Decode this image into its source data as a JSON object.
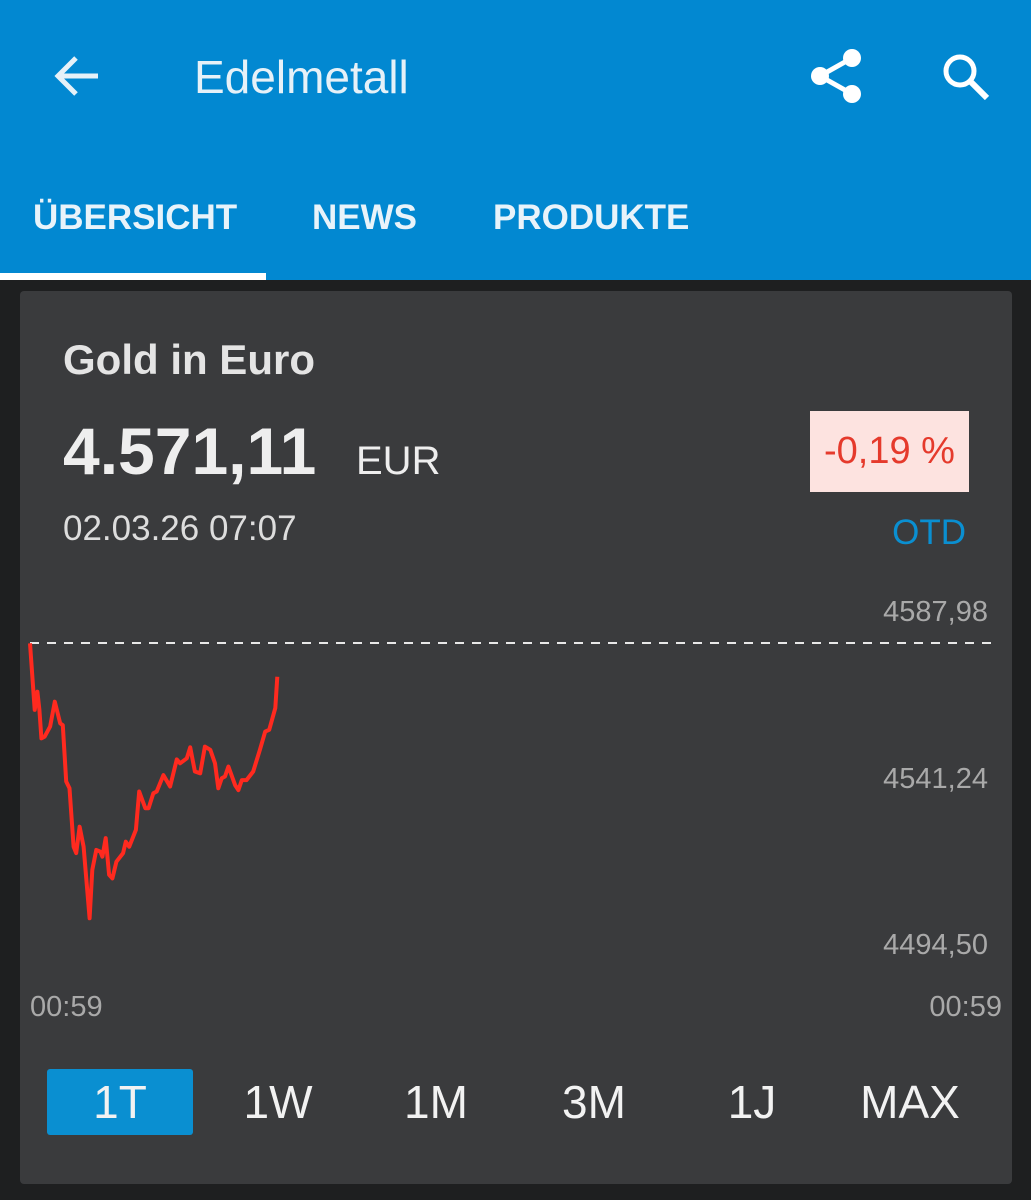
{
  "appbar": {
    "title": "Edelmetall",
    "icons": [
      "arrow-back-icon",
      "share-icon",
      "search-icon"
    ]
  },
  "tabs": [
    {
      "label": "ÜBERSICHT",
      "active": true
    },
    {
      "label": "NEWS"
    },
    {
      "label": "PRODUKTE"
    }
  ],
  "quote": {
    "name": "Gold in Euro",
    "price": "4.571,11",
    "currency": "EUR",
    "timestamp": "02.03.26 07:07",
    "change": "-0,19 %",
    "change_period": "OTD",
    "colors": {
      "accent": "#0288d1",
      "negative": "#e53a2c",
      "negative_bg": "#fde3e0",
      "line": "#ff2a1f"
    }
  },
  "ranges": [
    {
      "label": "1T",
      "active": true
    },
    {
      "label": "1W"
    },
    {
      "label": "1M"
    },
    {
      "label": "3M"
    },
    {
      "label": "1J"
    },
    {
      "label": "MAX"
    }
  ],
  "chart_data": {
    "type": "line",
    "y_ticks": [
      "4587,98",
      "4541,24",
      "4494,50"
    ],
    "y_tick_values": [
      4587.98,
      4541.24,
      4494.5
    ],
    "x_ticks": [
      "00:59",
      "00:59"
    ],
    "reference_line": 4587.98,
    "grid": false,
    "series": [
      {
        "x": [
          "00:59",
          "01:06",
          "01:10",
          "01:13",
          "01:16",
          "01:21",
          "01:29",
          "01:36",
          "01:44",
          "01:48",
          "01:53",
          "01:58",
          "02:04",
          "02:08",
          "02:13",
          "02:19",
          "02:28",
          "02:32",
          "02:38",
          "02:44",
          "02:47",
          "02:52",
          "02:57",
          "03:02",
          "03:08",
          "03:18",
          "03:22",
          "03:27",
          "03:37",
          "03:42",
          "03:51",
          "03:56",
          "04:03",
          "04:08",
          "04:18",
          "04:28",
          "04:38",
          "04:43",
          "04:53",
          "04:58",
          "05:05",
          "05:13",
          "05:20",
          "05:28",
          "05:35",
          "05:40",
          "05:45",
          "05:50",
          "05:55",
          "06:05",
          "06:10",
          "06:15",
          "06:22",
          "06:32",
          "06:42",
          "06:50",
          "06:56",
          "07:05",
          "07:08"
        ],
        "values": [
          4587.9,
          4569.2,
          4574.3,
          4569.2,
          4561.2,
          4561.7,
          4564.5,
          4571.5,
          4565.4,
          4564.9,
          4549.1,
          4547.2,
          4530.8,
          4529.0,
          4536.4,
          4530.8,
          4510.7,
          4524.3,
          4529.9,
          4529.4,
          4528.0,
          4533.2,
          4522.9,
          4521.9,
          4526.6,
          4529.0,
          4532.2,
          4530.8,
          4535.5,
          4546.3,
          4541.6,
          4541.6,
          4545.8,
          4546.3,
          4550.9,
          4547.7,
          4555.3,
          4554.2,
          4555.6,
          4558.7,
          4551.9,
          4551.4,
          4558.9,
          4558.0,
          4554.2,
          4547.2,
          4550.0,
          4550.5,
          4553.3,
          4548.1,
          4546.7,
          4549.5,
          4549.5,
          4551.9,
          4558.0,
          4563.1,
          4563.6,
          4569.7,
          4578.5
        ]
      }
    ]
  }
}
